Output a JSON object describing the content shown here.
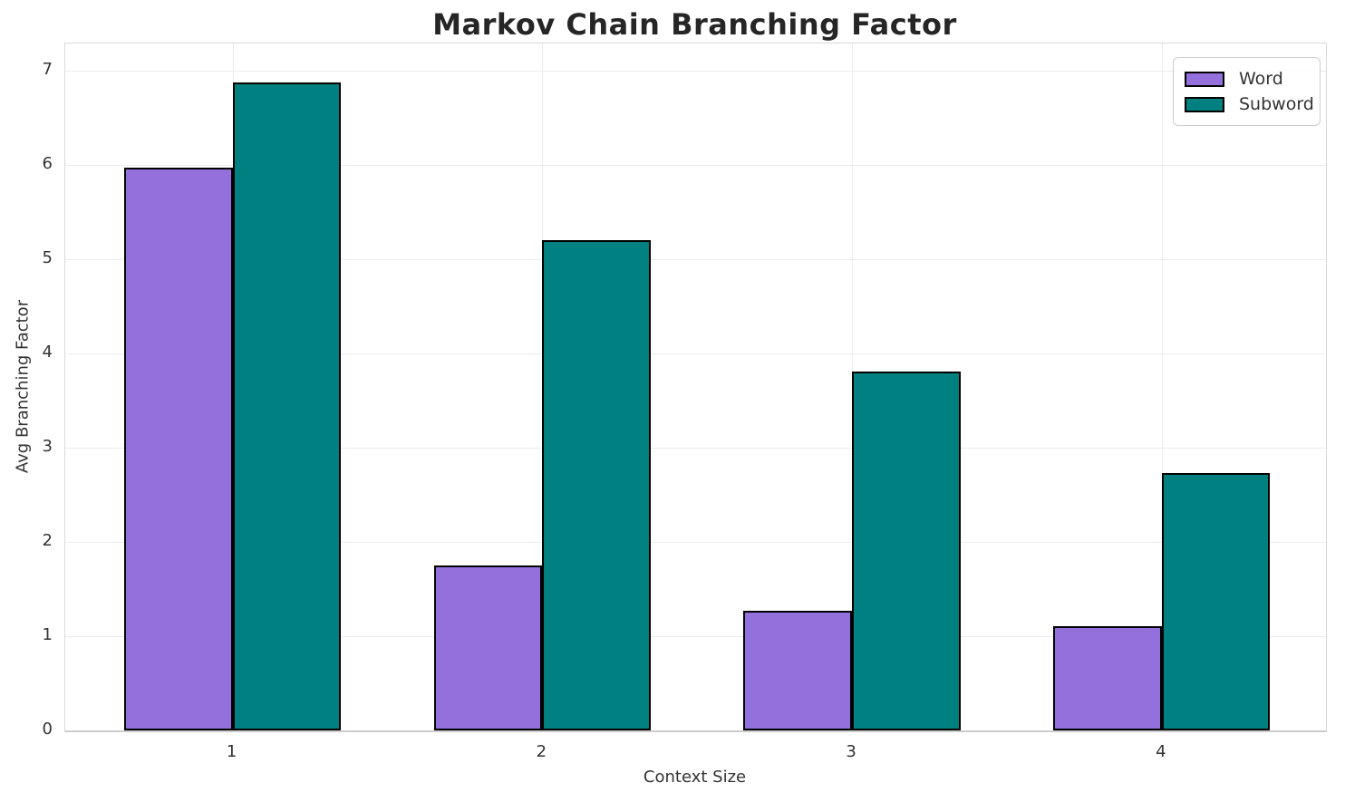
{
  "chart_data": {
    "type": "bar",
    "title": "Markov Chain Branching Factor",
    "xlabel": "Context Size",
    "ylabel": "Avg Branching Factor",
    "categories": [
      "1",
      "2",
      "3",
      "4"
    ],
    "series": [
      {
        "name": "Word",
        "color": "#9370DB",
        "values": [
          5.97,
          1.75,
          1.27,
          1.11
        ]
      },
      {
        "name": "Subword",
        "color": "#008080",
        "values": [
          6.88,
          5.2,
          3.81,
          2.73
        ]
      }
    ],
    "bar_width": 0.35,
    "bar_edge_color": "#000000",
    "y_ticks": [
      0,
      1,
      2,
      3,
      4,
      5,
      6,
      7
    ],
    "ylim": [
      0,
      7.29
    ],
    "xlim": [
      0.46,
      4.53
    ],
    "grid": true,
    "legend": {
      "position": "upper right",
      "entries": [
        "Word",
        "Subword"
      ]
    }
  },
  "colors": {
    "word_fill": "#9370DB",
    "subword_fill": "#008080",
    "bar_edge": "#000000",
    "gridline": "#ececec",
    "spine": "#d9d9d9",
    "bottom_spine": "#cccccc",
    "tick_text": "#333333",
    "title_text": "#262626",
    "background": "#ffffff"
  }
}
